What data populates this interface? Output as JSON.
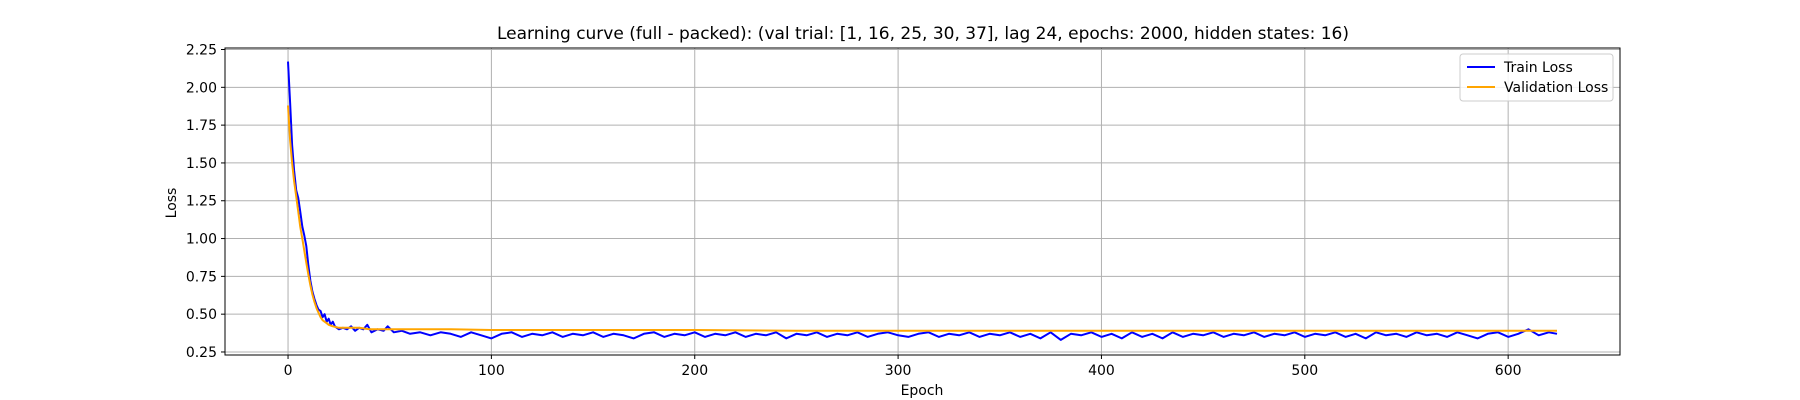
{
  "chart_data": {
    "type": "line",
    "title": "Learning curve (full - packed): (val trial: [1, 16, 25, 30, 37], lag 24, epochs: 2000, hidden states: 16)",
    "xlabel": "Epoch",
    "ylabel": "Loss",
    "xlim": [
      -31,
      655
    ],
    "ylim": [
      0.23,
      2.26
    ],
    "xticks": [
      "0",
      "100",
      "200",
      "300",
      "400",
      "500",
      "600"
    ],
    "yticks": [
      "0.25",
      "0.50",
      "0.75",
      "1.00",
      "1.25",
      "1.50",
      "1.75",
      "2.00",
      "2.25"
    ],
    "grid": true,
    "legend_position": "top-right",
    "series": [
      {
        "name": "Train Loss",
        "color": "#0000ff",
        "points": [
          [
            0,
            2.17
          ],
          [
            1,
            1.9
          ],
          [
            2,
            1.62
          ],
          [
            3,
            1.45
          ],
          [
            4,
            1.32
          ],
          [
            5,
            1.27
          ],
          [
            6,
            1.18
          ],
          [
            7,
            1.08
          ],
          [
            8,
            1.02
          ],
          [
            9,
            0.95
          ],
          [
            10,
            0.82
          ],
          [
            11,
            0.72
          ],
          [
            12,
            0.65
          ],
          [
            13,
            0.6
          ],
          [
            14,
            0.56
          ],
          [
            15,
            0.53
          ],
          [
            16,
            0.52
          ],
          [
            17,
            0.48
          ],
          [
            18,
            0.5
          ],
          [
            19,
            0.45
          ],
          [
            20,
            0.47
          ],
          [
            21,
            0.43
          ],
          [
            22,
            0.45
          ],
          [
            23,
            0.42
          ],
          [
            24,
            0.41
          ],
          [
            25,
            0.4
          ],
          [
            27,
            0.41
          ],
          [
            29,
            0.4
          ],
          [
            31,
            0.42
          ],
          [
            33,
            0.39
          ],
          [
            35,
            0.41
          ],
          [
            37,
            0.4
          ],
          [
            39,
            0.43
          ],
          [
            41,
            0.38
          ],
          [
            44,
            0.4
          ],
          [
            47,
            0.39
          ],
          [
            49,
            0.42
          ],
          [
            52,
            0.38
          ],
          [
            56,
            0.39
          ],
          [
            60,
            0.37
          ],
          [
            65,
            0.38
          ],
          [
            70,
            0.36
          ],
          [
            75,
            0.38
          ],
          [
            80,
            0.37
          ],
          [
            85,
            0.35
          ],
          [
            90,
            0.38
          ],
          [
            95,
            0.36
          ],
          [
            100,
            0.34
          ],
          [
            105,
            0.37
          ],
          [
            110,
            0.38
          ],
          [
            115,
            0.35
          ],
          [
            120,
            0.37
          ],
          [
            125,
            0.36
          ],
          [
            130,
            0.38
          ],
          [
            135,
            0.35
          ],
          [
            140,
            0.37
          ],
          [
            145,
            0.36
          ],
          [
            150,
            0.38
          ],
          [
            155,
            0.35
          ],
          [
            160,
            0.37
          ],
          [
            165,
            0.36
          ],
          [
            170,
            0.34
          ],
          [
            175,
            0.37
          ],
          [
            180,
            0.38
          ],
          [
            185,
            0.35
          ],
          [
            190,
            0.37
          ],
          [
            195,
            0.36
          ],
          [
            200,
            0.38
          ],
          [
            205,
            0.35
          ],
          [
            210,
            0.37
          ],
          [
            215,
            0.36
          ],
          [
            220,
            0.38
          ],
          [
            225,
            0.35
          ],
          [
            230,
            0.37
          ],
          [
            235,
            0.36
          ],
          [
            240,
            0.38
          ],
          [
            245,
            0.34
          ],
          [
            250,
            0.37
          ],
          [
            255,
            0.36
          ],
          [
            260,
            0.38
          ],
          [
            265,
            0.35
          ],
          [
            270,
            0.37
          ],
          [
            275,
            0.36
          ],
          [
            280,
            0.38
          ],
          [
            285,
            0.35
          ],
          [
            290,
            0.37
          ],
          [
            295,
            0.38
          ],
          [
            300,
            0.36
          ],
          [
            305,
            0.35
          ],
          [
            310,
            0.37
          ],
          [
            315,
            0.38
          ],
          [
            320,
            0.35
          ],
          [
            325,
            0.37
          ],
          [
            330,
            0.36
          ],
          [
            335,
            0.38
          ],
          [
            340,
            0.35
          ],
          [
            345,
            0.37
          ],
          [
            350,
            0.36
          ],
          [
            355,
            0.38
          ],
          [
            360,
            0.35
          ],
          [
            365,
            0.37
          ],
          [
            370,
            0.34
          ],
          [
            375,
            0.38
          ],
          [
            380,
            0.33
          ],
          [
            385,
            0.37
          ],
          [
            390,
            0.36
          ],
          [
            395,
            0.38
          ],
          [
            400,
            0.35
          ],
          [
            405,
            0.37
          ],
          [
            410,
            0.34
          ],
          [
            415,
            0.38
          ],
          [
            420,
            0.35
          ],
          [
            425,
            0.37
          ],
          [
            430,
            0.34
          ],
          [
            435,
            0.38
          ],
          [
            440,
            0.35
          ],
          [
            445,
            0.37
          ],
          [
            450,
            0.36
          ],
          [
            455,
            0.38
          ],
          [
            460,
            0.35
          ],
          [
            465,
            0.37
          ],
          [
            470,
            0.36
          ],
          [
            475,
            0.38
          ],
          [
            480,
            0.35
          ],
          [
            485,
            0.37
          ],
          [
            490,
            0.36
          ],
          [
            495,
            0.38
          ],
          [
            500,
            0.35
          ],
          [
            505,
            0.37
          ],
          [
            510,
            0.36
          ],
          [
            515,
            0.38
          ],
          [
            520,
            0.35
          ],
          [
            525,
            0.37
          ],
          [
            530,
            0.34
          ],
          [
            535,
            0.38
          ],
          [
            540,
            0.36
          ],
          [
            545,
            0.37
          ],
          [
            550,
            0.35
          ],
          [
            555,
            0.38
          ],
          [
            560,
            0.36
          ],
          [
            565,
            0.37
          ],
          [
            570,
            0.35
          ],
          [
            575,
            0.38
          ],
          [
            580,
            0.36
          ],
          [
            585,
            0.34
          ],
          [
            590,
            0.37
          ],
          [
            595,
            0.38
          ],
          [
            600,
            0.35
          ],
          [
            605,
            0.37
          ],
          [
            610,
            0.4
          ],
          [
            615,
            0.36
          ],
          [
            620,
            0.38
          ],
          [
            624,
            0.37
          ]
        ]
      },
      {
        "name": "Validation Loss",
        "color": "#ffa500",
        "points": [
          [
            0,
            1.88
          ],
          [
            1,
            1.65
          ],
          [
            2,
            1.5
          ],
          [
            3,
            1.38
          ],
          [
            4,
            1.28
          ],
          [
            5,
            1.18
          ],
          [
            6,
            1.08
          ],
          [
            7,
            1.0
          ],
          [
            8,
            0.92
          ],
          [
            9,
            0.84
          ],
          [
            10,
            0.76
          ],
          [
            11,
            0.69
          ],
          [
            12,
            0.63
          ],
          [
            13,
            0.58
          ],
          [
            14,
            0.54
          ],
          [
            15,
            0.51
          ],
          [
            16,
            0.48
          ],
          [
            17,
            0.46
          ],
          [
            18,
            0.45
          ],
          [
            19,
            0.44
          ],
          [
            20,
            0.43
          ],
          [
            22,
            0.42
          ],
          [
            25,
            0.41
          ],
          [
            30,
            0.41
          ],
          [
            35,
            0.41
          ],
          [
            40,
            0.4
          ],
          [
            50,
            0.4
          ],
          [
            60,
            0.4
          ],
          [
            80,
            0.4
          ],
          [
            100,
            0.395
          ],
          [
            150,
            0.395
          ],
          [
            200,
            0.395
          ],
          [
            250,
            0.39
          ],
          [
            300,
            0.39
          ],
          [
            350,
            0.39
          ],
          [
            400,
            0.39
          ],
          [
            450,
            0.39
          ],
          [
            500,
            0.39
          ],
          [
            550,
            0.39
          ],
          [
            600,
            0.39
          ],
          [
            624,
            0.39
          ]
        ]
      }
    ]
  }
}
